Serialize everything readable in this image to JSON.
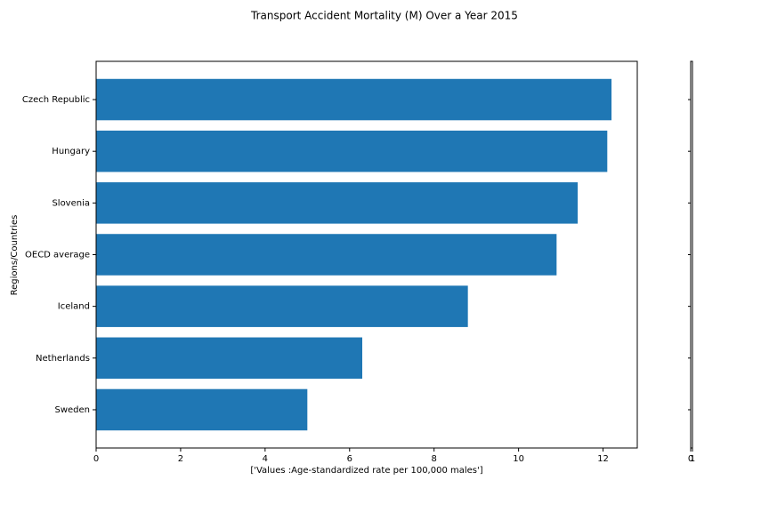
{
  "chart_data": {
    "type": "barh",
    "title": "Transport Accident Mortality (M) Over a Year 2015",
    "xlabel": "['Values :Age-standardized rate per 100,000 males']",
    "ylabel": "Regions/Countries",
    "categories": [
      "Czech Republic",
      "Hungary",
      "Slovenia",
      "OECD average",
      "Iceland",
      "Netherlands",
      "Sweden"
    ],
    "values": [
      12.2,
      12.1,
      11.4,
      10.9,
      8.8,
      6.3,
      5.0
    ],
    "color": "#1f77b4",
    "xlim": [
      0,
      12.81
    ],
    "xticks": [
      0,
      2,
      4,
      6,
      8,
      10,
      12
    ],
    "x2lim": [
      0,
      1
    ],
    "x2ticks": [
      0,
      1
    ],
    "grid": false
  }
}
